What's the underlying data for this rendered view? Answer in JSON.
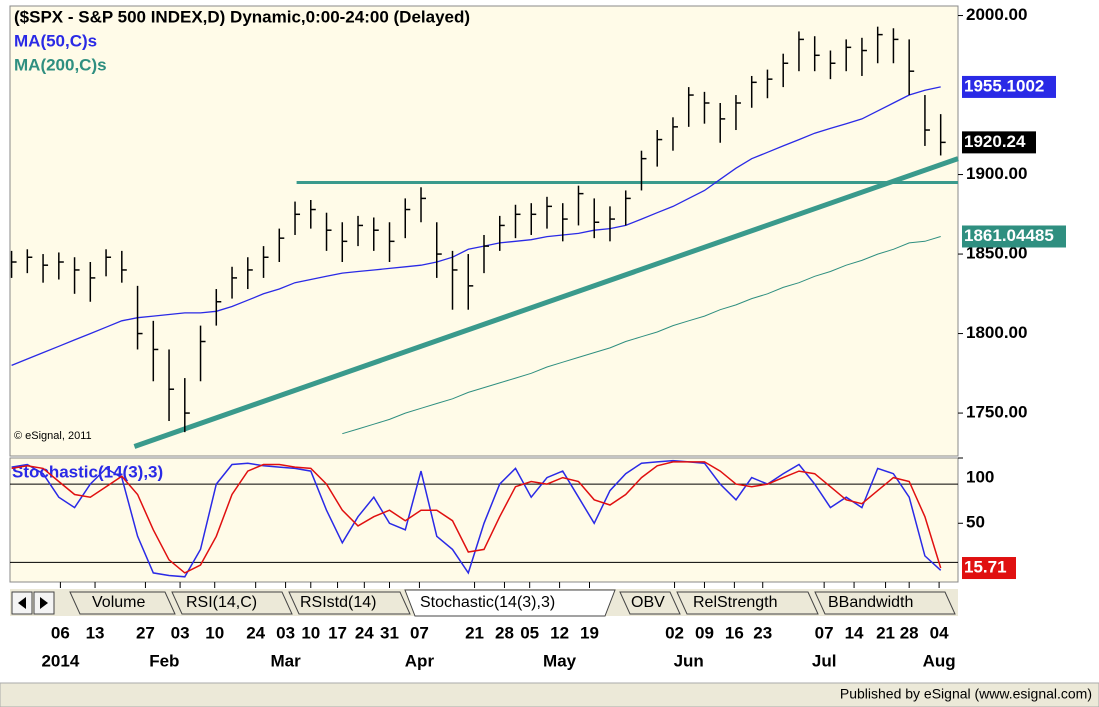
{
  "title": "($SPX - S&P 500 INDEX,D) Dynamic,0:00-24:00 (Delayed)",
  "copyright": "© eSignal, 2011",
  "footer": "Published by eSignal (www.esignal.com)",
  "tabs": [
    "Volume",
    "RSI(14,C)",
    "RSIstd(14)",
    "Stochastic(14(3),3)",
    "OBV",
    "RelStrength",
    "BBandwidth"
  ],
  "chart_data": [
    {
      "type": "ohlc",
      "color": "#000000",
      "xlim": [
        -0.1,
        60.1
      ],
      "ylim": [
        1723,
        2006
      ],
      "yticks": [
        {
          "value": 1750,
          "label": "1750.00"
        },
        {
          "value": 1800,
          "label": "1800.00"
        },
        {
          "value": 1850,
          "label": "1850.00"
        },
        {
          "value": 1900,
          "label": "1900.00"
        },
        {
          "value": 2000,
          "label": "2000.00"
        }
      ],
      "xticks": [
        {
          "value": 3.1,
          "label": "06"
        },
        {
          "value": 5.3,
          "label": "13"
        },
        {
          "value": 8.5,
          "label": "27"
        },
        {
          "value": 10.7,
          "label": "03"
        },
        {
          "value": 12.9,
          "label": "10"
        },
        {
          "value": 15.5,
          "label": "24"
        },
        {
          "value": 17.4,
          "label": "03"
        },
        {
          "value": 19.0,
          "label": "10"
        },
        {
          "value": 20.7,
          "label": "17"
        },
        {
          "value": 22.4,
          "label": "24"
        },
        {
          "value": 24.0,
          "label": "31"
        },
        {
          "value": 25.9,
          "label": "07"
        },
        {
          "value": 29.4,
          "label": "21"
        },
        {
          "value": 31.3,
          "label": "28"
        },
        {
          "value": 32.9,
          "label": "05"
        },
        {
          "value": 34.8,
          "label": "12"
        },
        {
          "value": 36.7,
          "label": "19"
        },
        {
          "value": 42.1,
          "label": "02"
        },
        {
          "value": 44.0,
          "label": "09"
        },
        {
          "value": 45.9,
          "label": "16"
        },
        {
          "value": 47.7,
          "label": "23"
        },
        {
          "value": 51.6,
          "label": "07"
        },
        {
          "value": 53.5,
          "label": "14"
        },
        {
          "value": 55.5,
          "label": "21"
        },
        {
          "value": 57.0,
          "label": "28"
        },
        {
          "value": 58.9,
          "label": "04"
        }
      ],
      "month_ticks": [
        {
          "value": 3.1,
          "label": "2014"
        },
        {
          "value": 9.7,
          "label": "Feb"
        },
        {
          "value": 17.4,
          "label": "Mar"
        },
        {
          "value": 25.9,
          "label": "Apr"
        },
        {
          "value": 34.8,
          "label": "May"
        },
        {
          "value": 43.0,
          "label": "Jun"
        },
        {
          "value": 51.6,
          "label": "Jul"
        },
        {
          "value": 58.9,
          "label": "Aug"
        }
      ],
      "high": [
        1852,
        1853,
        1850,
        1851,
        1848,
        1845,
        1853,
        1852,
        1830,
        1808,
        1790,
        1772,
        1805,
        1828,
        1842,
        1848,
        1855,
        1866,
        1883,
        1884,
        1876,
        1870,
        1874,
        1873,
        1870,
        1885,
        1892,
        1870,
        1852,
        1850,
        1862,
        1874,
        1881,
        1882,
        1886,
        1882,
        1893,
        1885,
        1880,
        1890,
        1915,
        1928,
        1936,
        1955,
        1952,
        1945,
        1950,
        1962,
        1966,
        1976,
        1990,
        1987,
        1978,
        1985,
        1986,
        1993,
        1992,
        1985,
        1950,
        1938
      ],
      "low": [
        1835,
        1838,
        1832,
        1834,
        1825,
        1820,
        1836,
        1832,
        1790,
        1770,
        1745,
        1738,
        1770,
        1805,
        1822,
        1828,
        1835,
        1845,
        1862,
        1866,
        1852,
        1845,
        1855,
        1852,
        1845,
        1860,
        1870,
        1835,
        1815,
        1815,
        1838,
        1852,
        1860,
        1862,
        1866,
        1858,
        1868,
        1860,
        1858,
        1868,
        1890,
        1905,
        1915,
        1930,
        1932,
        1920,
        1928,
        1942,
        1948,
        1955,
        1965,
        1965,
        1960,
        1965,
        1962,
        1970,
        1970,
        1950,
        1918,
        1912
      ],
      "close": [
        1845,
        1848,
        1843,
        1845,
        1840,
        1835,
        1848,
        1840,
        1800,
        1790,
        1765,
        1750,
        1795,
        1820,
        1835,
        1840,
        1848,
        1860,
        1875,
        1878,
        1865,
        1858,
        1868,
        1865,
        1858,
        1878,
        1885,
        1850,
        1840,
        1830,
        1855,
        1868,
        1875,
        1875,
        1880,
        1872,
        1888,
        1870,
        1872,
        1885,
        1910,
        1922,
        1930,
        1950,
        1945,
        1935,
        1945,
        1958,
        1960,
        1970,
        1985,
        1975,
        1970,
        1980,
        1978,
        1988,
        1985,
        1965,
        1928,
        1920.24
      ],
      "series": [
        {
          "name": "MA(50,C)s",
          "color": "#2a2ae6",
          "values": [
            1780,
            1784,
            1788,
            1792,
            1796,
            1800,
            1804,
            1808,
            1810,
            1811,
            1812,
            1813,
            1813,
            1814,
            1817,
            1821,
            1825,
            1828,
            1832,
            1834,
            1836,
            1838,
            1839,
            1840,
            1841,
            1842,
            1843,
            1845,
            1848,
            1853,
            1855,
            1857,
            1858,
            1859,
            1861,
            1862,
            1863,
            1865,
            1866,
            1868,
            1872,
            1876,
            1880,
            1885,
            1890,
            1897,
            1904,
            1910,
            1914,
            1918,
            1922,
            1926,
            1929,
            1932,
            1935,
            1940,
            1945,
            1950,
            1953,
            1955.1002
          ]
        },
        {
          "name": "MA(200,C)s",
          "color": "#2f8f80",
          "values": [
            null,
            null,
            null,
            null,
            null,
            null,
            null,
            null,
            null,
            null,
            null,
            null,
            null,
            null,
            null,
            null,
            null,
            null,
            null,
            null,
            null,
            1737,
            1740,
            1743,
            1746,
            1750,
            1753,
            1756,
            1759,
            1763,
            1766,
            1769,
            1772,
            1775,
            1779,
            1782,
            1785,
            1788,
            1791,
            1795,
            1798,
            1801,
            1805,
            1808,
            1811,
            1815,
            1818,
            1822,
            1825,
            1829,
            1832,
            1836,
            1839,
            1843,
            1846,
            1850,
            1853,
            1857,
            1858,
            1861.04485
          ]
        }
      ],
      "trendlines": [
        {
          "color": "#3a9a8c",
          "x": [
            18.1,
            60.1
          ],
          "y": [
            1895,
            1895
          ]
        },
        {
          "color": "#3a9a8c",
          "x": [
            7.8,
            60.1
          ],
          "y": [
            1729,
            1910
          ]
        }
      ]
    },
    {
      "type": "line",
      "title": "Stochastic(14(3),3)",
      "xlim": [
        -0.1,
        60.1
      ],
      "ylim": [
        5,
        100
      ],
      "yticks": [
        100,
        50
      ],
      "levels": [
        80,
        20
      ],
      "series": [
        {
          "color": "#2a2ae6",
          "values": [
            93,
            95,
            88,
            70,
            62,
            80,
            92,
            85,
            40,
            12,
            10,
            9,
            30,
            80,
            95,
            96,
            94,
            93,
            92,
            90,
            60,
            35,
            55,
            70,
            50,
            45,
            90,
            40,
            30,
            12,
            50,
            80,
            92,
            70,
            85,
            90,
            70,
            50,
            75,
            88,
            96,
            97,
            98,
            97,
            96,
            80,
            68,
            85,
            80,
            88,
            95,
            80,
            62,
            70,
            62,
            92,
            88,
            70,
            25,
            14
          ]
        },
        {
          "color": "#e01010",
          "values": [
            92,
            94,
            92,
            82,
            72,
            70,
            78,
            86,
            72,
            45,
            22,
            12,
            18,
            40,
            72,
            90,
            95,
            95,
            93,
            92,
            80,
            60,
            48,
            55,
            60,
            52,
            60,
            60,
            52,
            28,
            30,
            55,
            78,
            82,
            80,
            85,
            82,
            68,
            64,
            72,
            85,
            94,
            97,
            97,
            97,
            90,
            80,
            78,
            80,
            85,
            90,
            88,
            78,
            68,
            65,
            75,
            85,
            82,
            55,
            15.71
          ]
        }
      ]
    }
  ]
}
